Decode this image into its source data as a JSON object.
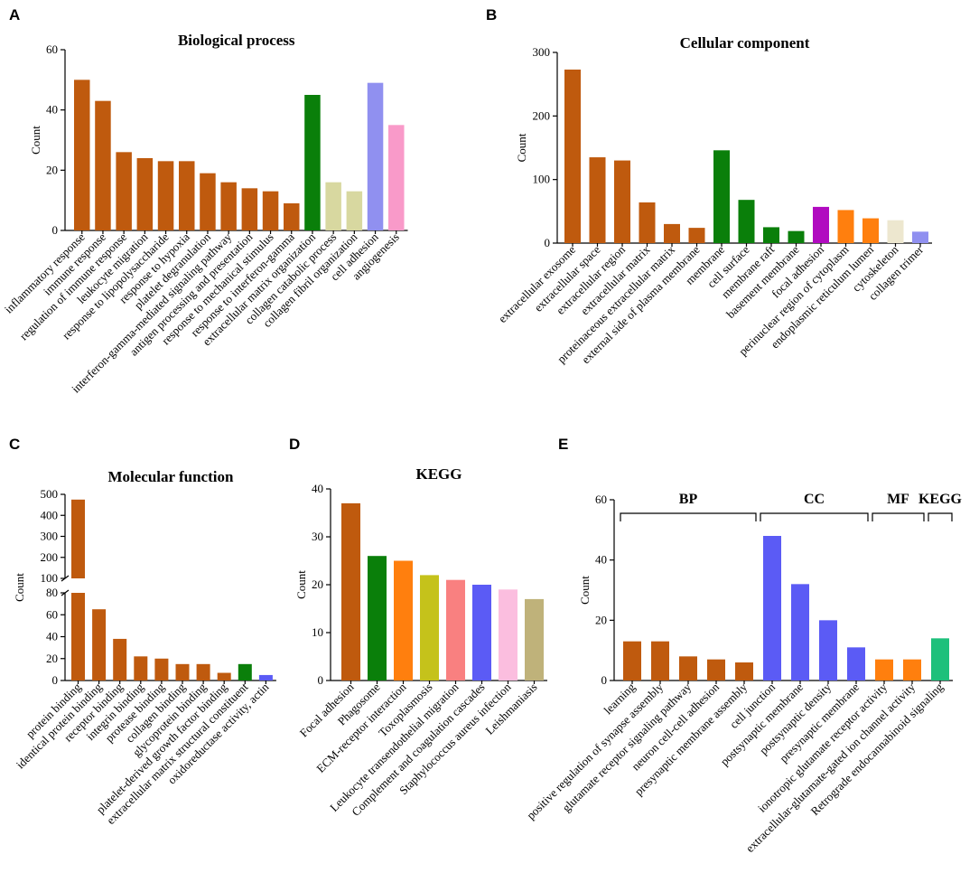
{
  "colors": {
    "orange_brown": "#BF5A0E",
    "green": "#0A7F0A",
    "pale_olive": "#D8D8A0",
    "lavender": "#9090F0",
    "pink": "#F99AC9",
    "magenta": "#B10BC0",
    "orange": "#FF7F0E",
    "beige": "#EDE7CF",
    "blue": "#5B5BF5",
    "olive": "#C5C21B",
    "salmon": "#F98080",
    "light_pink": "#FBBEDF",
    "khaki": "#BFB27A",
    "teal_green": "#1DC07B"
  },
  "chart_data": [
    {
      "panel": "A",
      "type": "bar",
      "title": "Biological process",
      "ylabel": "Count",
      "ylim": [
        0,
        60
      ],
      "yticks": [
        "0",
        "20",
        "40",
        "60"
      ],
      "categories": [
        "inflammatory response",
        "immune response",
        "regulation of immune response",
        "leukocyte migration",
        "response to lipopolysaccharide",
        "response to hypoxia",
        "platelet degranulation",
        "interferon-gamma-mediated signaling pathway",
        "antigen processing and presentation",
        "response to mechanical stimulus",
        "response to interferon-gamma",
        "extracellular matrix organization",
        "collagen catabolic process",
        "collagen fibril organization",
        "cell adhesion",
        "angiogenesis"
      ],
      "values": [
        50,
        43,
        26,
        24,
        23,
        23,
        19,
        16,
        14,
        13,
        9,
        45,
        16,
        13,
        49,
        35
      ],
      "bar_colors": [
        "orange_brown",
        "orange_brown",
        "orange_brown",
        "orange_brown",
        "orange_brown",
        "orange_brown",
        "orange_brown",
        "orange_brown",
        "orange_brown",
        "orange_brown",
        "orange_brown",
        "green",
        "pale_olive",
        "pale_olive",
        "lavender",
        "pink"
      ]
    },
    {
      "panel": "B",
      "type": "bar",
      "title": "Cellular component",
      "ylabel": "Count",
      "ylim": [
        0,
        300
      ],
      "yticks": [
        "0",
        "100",
        "200",
        "300"
      ],
      "categories": [
        "extracellular exosome",
        "extracellular space",
        "extracellular region",
        "extracellular matrix",
        "proteinaceous extracellular matrix",
        "external side of plasma membrane",
        "membrane",
        "cell surface",
        "membrane raft",
        "basement membrane",
        "focal adhesion",
        "perinuclear region of cytoplasm",
        "endoplasmic reticulum lumen",
        "cytoskeleton",
        "collagen trimer"
      ],
      "values": [
        273,
        135,
        130,
        64,
        30,
        24,
        146,
        68,
        25,
        19,
        57,
        52,
        39,
        36,
        18
      ],
      "bar_colors": [
        "orange_brown",
        "orange_brown",
        "orange_brown",
        "orange_brown",
        "orange_brown",
        "orange_brown",
        "green",
        "green",
        "green",
        "green",
        "magenta",
        "orange",
        "orange",
        "beige",
        "lavender"
      ]
    },
    {
      "panel": "C",
      "type": "bar",
      "title": "Molecular function",
      "ylabel": "Count",
      "broken_axis": true,
      "ylim_lower": [
        0,
        80
      ],
      "ylim_upper": [
        100,
        500
      ],
      "yticks_lower": [
        "0",
        "20",
        "40",
        "60",
        "80"
      ],
      "yticks_upper": [
        "100",
        "200",
        "300",
        "400",
        "500"
      ],
      "categories": [
        "protein binding",
        "identical protein binding",
        "receptor binding",
        "integrin binding",
        "protease binding",
        "collagen binding",
        "glycoprotein binding",
        "platelet-derived growth factor binding",
        "extracellular matrix structural constituent",
        "oxidoreductase activity, actin"
      ],
      "values": [
        475,
        65,
        38,
        22,
        20,
        15,
        15,
        7,
        15,
        5
      ],
      "bar_colors": [
        "orange_brown",
        "orange_brown",
        "orange_brown",
        "orange_brown",
        "orange_brown",
        "orange_brown",
        "orange_brown",
        "orange_brown",
        "green",
        "blue"
      ]
    },
    {
      "panel": "D",
      "type": "bar",
      "title": "KEGG",
      "ylabel": "Count",
      "ylim": [
        0,
        40
      ],
      "yticks": [
        "0",
        "10",
        "20",
        "30",
        "40"
      ],
      "categories": [
        "Focal adhesion",
        "Phagosome",
        "ECM-receptor interaction",
        "Toxoplasmosis",
        "Leukocyte transendothelial migration",
        "Complement and coagulation cascades",
        "Staphylococcus aureus infection",
        "Leishmaniasis"
      ],
      "values": [
        37,
        26,
        25,
        22,
        21,
        20,
        19,
        17
      ],
      "bar_colors": [
        "orange_brown",
        "green",
        "orange",
        "olive",
        "salmon",
        "blue",
        "light_pink",
        "khaki"
      ]
    },
    {
      "panel": "E",
      "type": "bar",
      "title": "",
      "ylabel": "Count",
      "ylim": [
        0,
        60
      ],
      "yticks": [
        "0",
        "20",
        "40",
        "60"
      ],
      "groups": [
        {
          "label": "BP",
          "first": 0,
          "last": 4
        },
        {
          "label": "CC",
          "first": 5,
          "last": 8
        },
        {
          "label": "MF",
          "first": 9,
          "last": 10
        },
        {
          "label": "KEGG",
          "first": 11,
          "last": 11
        }
      ],
      "categories": [
        "learning",
        "positive regulation of synapse assembly",
        "glutamate receptor signaling pathway",
        "neuron cell-cell adhesion",
        "presynaptic membrane assembly",
        "cell junction",
        "postsynaptic membrane",
        "postsynaptic density",
        "presynaptic membrane",
        "ionotropic glutamate receptor activity",
        "extracellular-glutamate-gated ion channel activity",
        "Retrograde endocannabinoid signaling"
      ],
      "values": [
        13,
        13,
        8,
        7,
        6,
        48,
        32,
        20,
        11,
        7,
        7,
        14
      ],
      "bar_colors": [
        "orange_brown",
        "orange_brown",
        "orange_brown",
        "orange_brown",
        "orange_brown",
        "blue",
        "blue",
        "blue",
        "blue",
        "orange",
        "orange",
        "teal_green"
      ]
    }
  ]
}
